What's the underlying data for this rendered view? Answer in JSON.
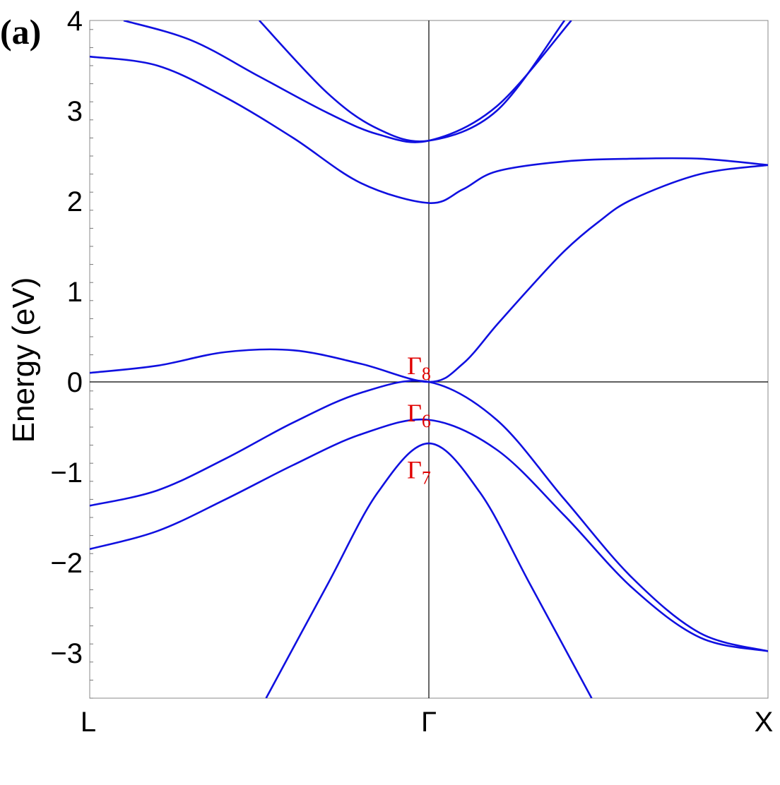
{
  "chart_data": {
    "type": "line",
    "panel_label": "(a)",
    "ylabel": "Energy (eV)",
    "xlabel": "",
    "ylim": [
      -3.5,
      4
    ],
    "yticks": [
      {
        "value": -3,
        "label": "−3"
      },
      {
        "value": -2,
        "label": "−2"
      },
      {
        "value": -1,
        "label": "−1"
      },
      {
        "value": 0,
        "label": "0"
      },
      {
        "value": 1,
        "label": "1"
      },
      {
        "value": 2,
        "label": "2"
      },
      {
        "value": 3,
        "label": "3"
      },
      {
        "value": 4,
        "label": "4"
      }
    ],
    "xlim": [
      -1,
      1
    ],
    "xticks": [
      {
        "value": -1,
        "label": "L"
      },
      {
        "value": 0,
        "label": "Γ"
      },
      {
        "value": 1,
        "label": "X"
      }
    ],
    "line_color": "#1010e0",
    "annotation_color": "#e00000",
    "series": [
      {
        "x": [
          -1,
          -0.8,
          -0.6,
          -0.4,
          -0.2,
          0,
          0.1,
          0.2,
          0.3,
          0.4,
          0.5,
          0.6,
          0.8,
          1
        ],
        "y": [
          0.1,
          0.18,
          0.33,
          0.35,
          0.2,
          0,
          0.2,
          0.63,
          1.05,
          1.45,
          1.77,
          2.02,
          2.3,
          2.4
        ]
      },
      {
        "x": [
          -1,
          -0.8,
          -0.6,
          -0.4,
          -0.2,
          0,
          0.2,
          0.4,
          0.6,
          0.8,
          1
        ],
        "y": [
          -1.37,
          -1.2,
          -0.85,
          -0.45,
          -0.12,
          0,
          -0.42,
          -1.3,
          -2.17,
          -2.78,
          -2.98
        ]
      },
      {
        "x": [
          -1,
          -0.8,
          -0.6,
          -0.4,
          -0.2,
          0,
          0.2,
          0.4,
          0.6,
          0.8,
          1
        ],
        "y": [
          -1.85,
          -1.65,
          -1.3,
          -0.92,
          -0.58,
          -0.42,
          -0.75,
          -1.48,
          -2.28,
          -2.83,
          -2.98
        ]
      },
      {
        "x": [
          -0.48,
          -0.3,
          -0.15,
          0,
          0.15,
          0.3,
          0.48
        ],
        "y": [
          -3.5,
          -2.25,
          -1.22,
          -0.68,
          -1.22,
          -2.25,
          -3.5
        ]
      },
      {
        "x": [
          -1,
          -0.8,
          -0.6,
          -0.4,
          -0.2,
          0,
          0.1,
          0.2,
          0.4,
          0.6,
          0.8,
          1
        ],
        "y": [
          3.6,
          3.5,
          3.15,
          2.7,
          2.2,
          1.98,
          2.13,
          2.33,
          2.44,
          2.47,
          2.47,
          2.4
        ]
      },
      {
        "x": [
          -0.9,
          -0.7,
          -0.5,
          -0.3,
          -0.15,
          0,
          0.2,
          0.42
        ],
        "y": [
          4.0,
          3.78,
          3.38,
          2.98,
          2.74,
          2.67,
          3.05,
          4.0
        ]
      },
      {
        "x": [
          -0.5,
          -0.3,
          -0.15,
          0,
          0.2,
          0.4
        ],
        "y": [
          4.0,
          3.2,
          2.8,
          2.67,
          3.0,
          4.0
        ]
      }
    ],
    "annotations": [
      {
        "base": "Γ",
        "sub": "8",
        "x": 0,
        "y": 0.1
      },
      {
        "base": "Γ",
        "sub": "6",
        "x": 0,
        "y": -0.42
      },
      {
        "base": "Γ",
        "sub": "7",
        "x": 0,
        "y": -1.05
      }
    ]
  }
}
